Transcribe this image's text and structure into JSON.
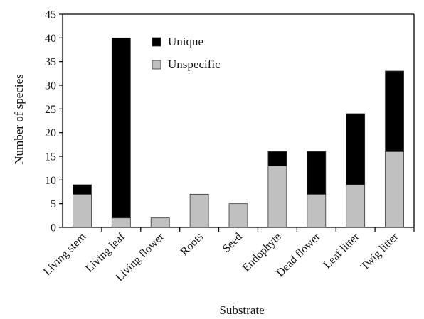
{
  "chart_data": {
    "type": "bar",
    "stacked": true,
    "categories": [
      "Living stem",
      "Living leaf",
      "Living flower",
      "Roots",
      "Seed",
      "Endophyte",
      "Dead flower",
      "Leaf litter",
      "Twig litter"
    ],
    "series": [
      {
        "name": "Unspecific",
        "color": "#c0c0c0",
        "values": [
          7,
          2,
          2,
          7,
          5,
          13,
          7,
          9,
          16
        ]
      },
      {
        "name": "Unique",
        "color": "#000000",
        "values": [
          2,
          38,
          0,
          0,
          0,
          3,
          9,
          15,
          17
        ]
      }
    ],
    "title": "",
    "xlabel": "Substrate",
    "ylabel": "Number of species",
    "ylim": [
      0,
      45
    ],
    "yticks": [
      0,
      5,
      10,
      15,
      20,
      25,
      30,
      35,
      40,
      45
    ],
    "grid": false,
    "legend_position": "top-center",
    "legend_order": [
      "Unique",
      "Unspecific"
    ]
  }
}
